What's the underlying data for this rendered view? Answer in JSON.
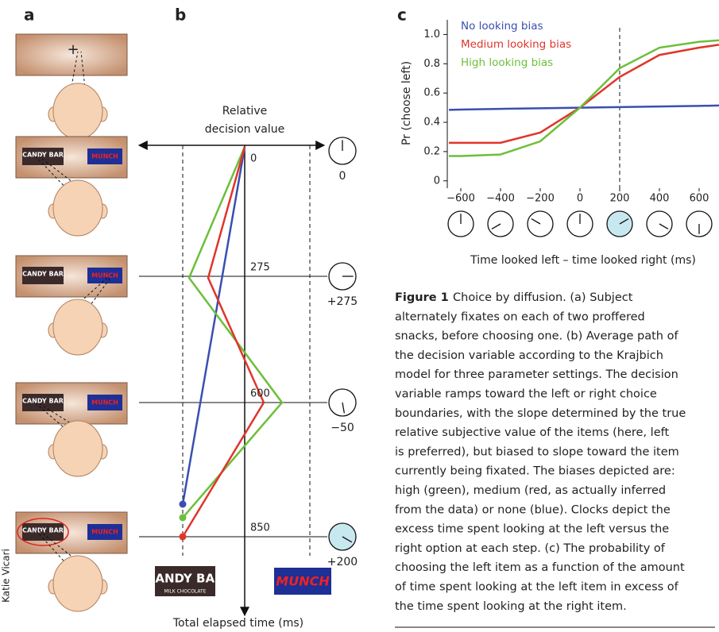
{
  "panel_labels": [
    "a",
    "b",
    "c"
  ],
  "credit": "Katie Vicari",
  "panel_a": {
    "left_item": "CANDY BAR",
    "left_item_sub": "MILK CHOCOLATE",
    "right_item": "MUNCH",
    "fixation_mark": "+"
  },
  "panel_b": {
    "axis_title": [
      "Relative",
      "decision value"
    ],
    "time_axis_title": "Total elapsed time (ms)",
    "times": [
      "0",
      "275",
      "600",
      "850"
    ],
    "clock_labels": [
      "0",
      "+275",
      "−50",
      "+200"
    ]
  },
  "chart_data": {
    "type": "line",
    "x_label": "Time looked left – time looked right (ms)",
    "y_label": "Pr (choose left)",
    "x": [
      -660,
      -600,
      -400,
      -200,
      0,
      200,
      400,
      600,
      700
    ],
    "series": [
      {
        "name": "No looking bias",
        "color": "#3a4fb0",
        "values": [
          0.485,
          0.487,
          0.492,
          0.496,
          0.5,
          0.504,
          0.508,
          0.512,
          0.515
        ]
      },
      {
        "name": "Medium looking bias",
        "color": "#e0352b",
        "values": [
          0.26,
          0.26,
          0.26,
          0.33,
          0.5,
          0.71,
          0.86,
          0.91,
          0.93
        ]
      },
      {
        "name": "High looking bias",
        "color": "#6cbf3a",
        "values": [
          0.17,
          0.17,
          0.18,
          0.27,
          0.5,
          0.77,
          0.91,
          0.95,
          0.96
        ]
      }
    ],
    "xlim": [
      -668,
      700
    ],
    "xticks": [
      {
        "value": -600,
        "label": "−600"
      },
      {
        "value": -400,
        "label": "−400"
      },
      {
        "value": -200,
        "label": "−200"
      },
      0,
      200,
      400,
      600
    ],
    "ylim": [
      -0.05,
      1.1
    ],
    "yticks": [
      0,
      {
        "value": 0.2,
        "label": "0.2"
      },
      {
        "value": 0.4,
        "label": "0.4"
      },
      {
        "value": 0.6,
        "label": "0.6"
      },
      {
        "value": 0.8,
        "label": "0.8"
      },
      {
        "value": 1,
        "label": "1.0"
      }
    ],
    "marker_line_x": 200,
    "legend": "upper left"
  },
  "caption": {
    "label": "Figure 1",
    "lines": [
      "Choice by diffusion. (a) Subject",
      "alternately fixates on each of two proffered",
      "snacks, before choosing one. (b) Average path of",
      "the decision variable according to the Krajbich",
      "model for three parameter settings. The decision",
      "variable ramps toward the left or right choice",
      "boundaries, with the slope determined by the true",
      "relative subjective value of the items (here, left",
      "is preferred), but biased to slope toward the item",
      "currently being fixated. The biases depicted are:",
      "high (green), medium (red, as actually inferred",
      "from the data) or none (blue). Clocks depict the",
      "excess time spent looking at the left versus the",
      "right option at each step. (c) The probability of",
      "choosing the left item as a function of the amount",
      "of time spent looking at the left item in excess of",
      "the time spent looking at the right item."
    ]
  }
}
